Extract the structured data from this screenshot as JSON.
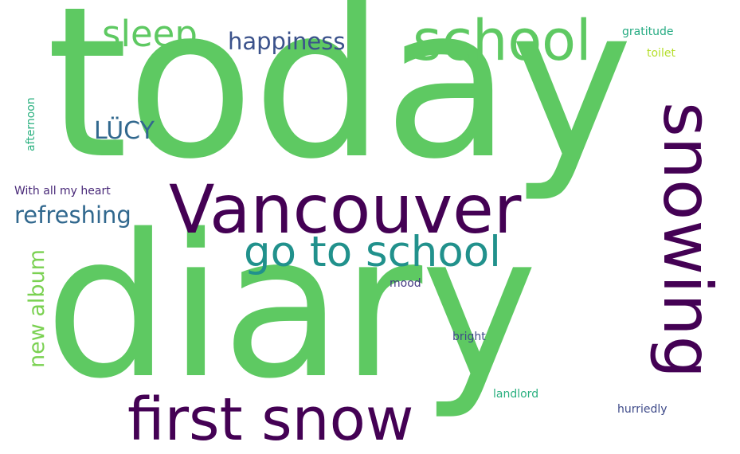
{
  "wordcloud": {
    "words": {
      "today": {
        "text": "today",
        "color": "#5ec962"
      },
      "diary": {
        "text": "diary",
        "color": "#5ec962"
      },
      "vancouver": {
        "text": "Vancouver",
        "color": "#440154"
      },
      "first_snow": {
        "text": "first snow",
        "color": "#440154"
      },
      "school": {
        "text": "school",
        "color": "#5ec962"
      },
      "snowing": {
        "text": "snowing",
        "color": "#440154"
      },
      "go_to_school": {
        "text": "go to school",
        "color": "#21918c"
      },
      "sleep": {
        "text": "sleep",
        "color": "#5ec962"
      },
      "happiness": {
        "text": "happiness",
        "color": "#3b528b"
      },
      "lucy": {
        "text": "LÜCY",
        "color": "#31688e"
      },
      "refreshing": {
        "text": "refreshing",
        "color": "#31688e"
      },
      "new_album": {
        "text": "new album",
        "color": "#7ad151"
      },
      "with_all": {
        "text": "With all my heart",
        "color": "#482878"
      },
      "afternoon": {
        "text": "afternoon",
        "color": "#2ab07f"
      },
      "gratitude": {
        "text": "gratitude",
        "color": "#25ab82"
      },
      "toilet": {
        "text": "toilet",
        "color": "#b5de2b"
      },
      "mood": {
        "text": "mood",
        "color": "#443983"
      },
      "bright": {
        "text": "bright",
        "color": "#3e4a89"
      },
      "landlord": {
        "text": "landlord",
        "color": "#2ab07f"
      },
      "hurriedly": {
        "text": "hurriedly",
        "color": "#3e4a89"
      }
    }
  }
}
